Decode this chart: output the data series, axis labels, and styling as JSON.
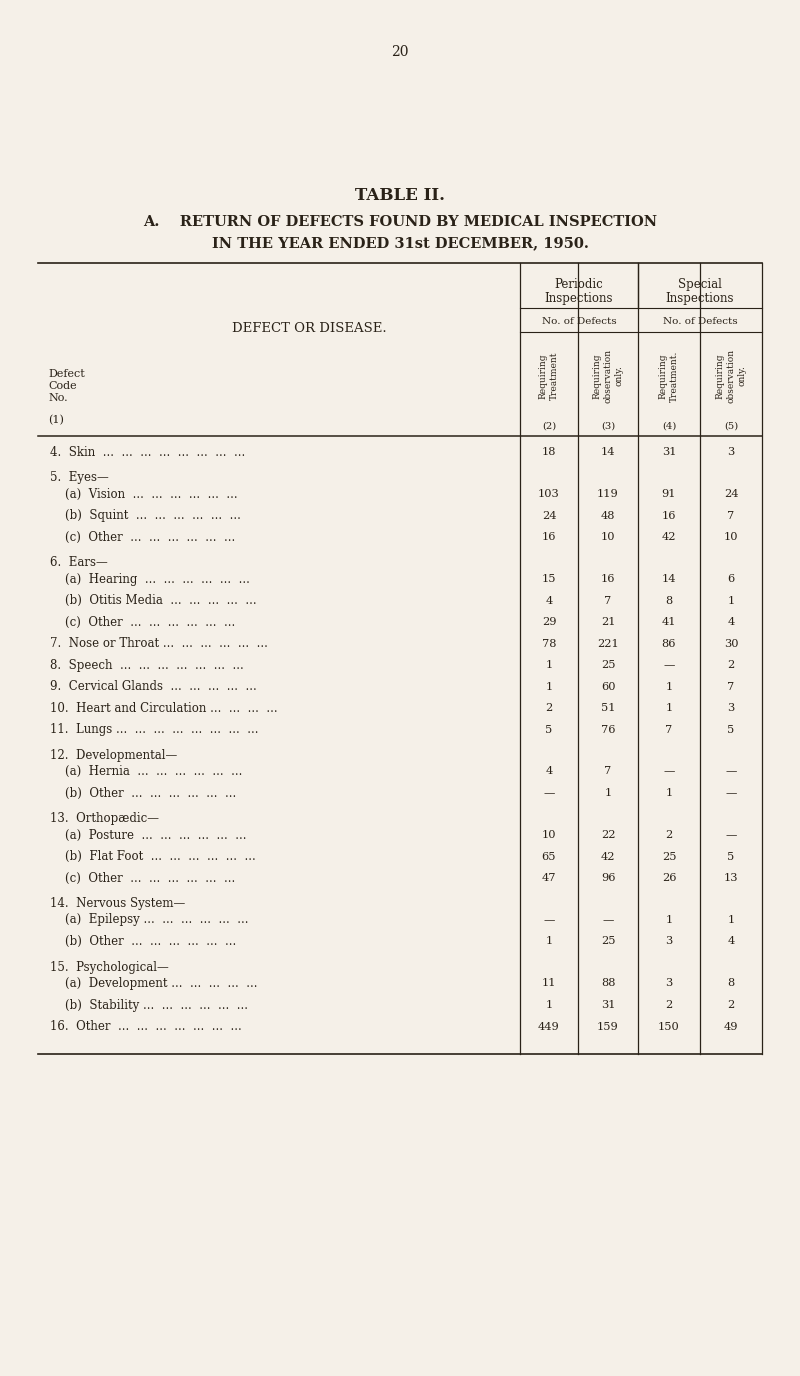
{
  "page_number": "20",
  "table_title": "TABLE II.",
  "subtitle_a": "A.    RETURN OF DEFECTS FOUND BY MEDICAL INSPECTION",
  "subtitle_b": "IN THE YEAR ENDED 31st DECEMBER, 1950.",
  "col_headers_rot": [
    "Requiring\nTreatment",
    "Requiring\nobservation\nonly.",
    "Requiring\nTreatment.",
    "Requiring\nobservation\nonly."
  ],
  "col_numbers": [
    "(2)",
    "(3)",
    "(4)",
    "(5)"
  ],
  "rows": [
    {
      "label": "4.  Skin  ...  ...  ...  ...  ...  ...  ...  ...",
      "level": 0,
      "v2": "18",
      "v3": "14",
      "v4": "31",
      "v5": "3"
    },
    {
      "label": "5.  Eyes—",
      "level": 0,
      "v2": "",
      "v3": "",
      "v4": "",
      "v5": ""
    },
    {
      "label": "    (a)  Vision  ...  ...  ...  ...  ...  ...",
      "level": 1,
      "v2": "103",
      "v3": "119",
      "v4": "91",
      "v5": "24"
    },
    {
      "label": "    (b)  Squint  ...  ...  ...  ...  ...  ...",
      "level": 1,
      "v2": "24",
      "v3": "48",
      "v4": "16",
      "v5": "7"
    },
    {
      "label": "    (c)  Other  ...  ...  ...  ...  ...  ...",
      "level": 1,
      "v2": "16",
      "v3": "10",
      "v4": "42",
      "v5": "10"
    },
    {
      "label": "6.  Ears—",
      "level": 0,
      "v2": "",
      "v3": "",
      "v4": "",
      "v5": ""
    },
    {
      "label": "    (a)  Hearing  ...  ...  ...  ...  ...  ...",
      "level": 1,
      "v2": "15",
      "v3": "16",
      "v4": "14",
      "v5": "6"
    },
    {
      "label": "    (b)  Otitis Media  ...  ...  ...  ...  ...",
      "level": 1,
      "v2": "4",
      "v3": "7",
      "v4": "8",
      "v5": "1"
    },
    {
      "label": "    (c)  Other  ...  ...  ...  ...  ...  ...",
      "level": 1,
      "v2": "29",
      "v3": "21",
      "v4": "41",
      "v5": "4"
    },
    {
      "label": "7.  Nose or Throat ...  ...  ...  ...  ...  ...",
      "level": 0,
      "v2": "78",
      "v3": "221",
      "v4": "86",
      "v5": "30"
    },
    {
      "label": "8.  Speech  ...  ...  ...  ...  ...  ...  ...",
      "level": 0,
      "v2": "1",
      "v3": "25",
      "v4": "—",
      "v5": "2"
    },
    {
      "label": "9.  Cervical Glands  ...  ...  ...  ...  ...",
      "level": 0,
      "v2": "1",
      "v3": "60",
      "v4": "1",
      "v5": "7"
    },
    {
      "label": "10.  Heart and Circulation ...  ...  ...  ...",
      "level": 0,
      "v2": "2",
      "v3": "51",
      "v4": "1",
      "v5": "3"
    },
    {
      "label": "11.  Lungs ...  ...  ...  ...  ...  ...  ...  ...",
      "level": 0,
      "v2": "5",
      "v3": "76",
      "v4": "7",
      "v5": "5"
    },
    {
      "label": "12.  Developmental—",
      "level": 0,
      "v2": "",
      "v3": "",
      "v4": "",
      "v5": ""
    },
    {
      "label": "    (a)  Hernia  ...  ...  ...  ...  ...  ...",
      "level": 1,
      "v2": "4",
      "v3": "7",
      "v4": "—",
      "v5": "—"
    },
    {
      "label": "    (b)  Other  ...  ...  ...  ...  ...  ...",
      "level": 1,
      "v2": "—",
      "v3": "1",
      "v4": "1",
      "v5": "—"
    },
    {
      "label": "13.  Orthopædic—",
      "level": 0,
      "v2": "",
      "v3": "",
      "v4": "",
      "v5": ""
    },
    {
      "label": "    (a)  Posture  ...  ...  ...  ...  ...  ...",
      "level": 1,
      "v2": "10",
      "v3": "22",
      "v4": "2",
      "v5": "—"
    },
    {
      "label": "    (b)  Flat Foot  ...  ...  ...  ...  ...  ...",
      "level": 1,
      "v2": "65",
      "v3": "42",
      "v4": "25",
      "v5": "5"
    },
    {
      "label": "    (c)  Other  ...  ...  ...  ...  ...  ...",
      "level": 1,
      "v2": "47",
      "v3": "96",
      "v4": "26",
      "v5": "13"
    },
    {
      "label": "14.  Nervous System—",
      "level": 0,
      "v2": "",
      "v3": "",
      "v4": "",
      "v5": ""
    },
    {
      "label": "    (a)  Epilepsy ...  ...  ...  ...  ...  ...",
      "level": 1,
      "v2": "—",
      "v3": "—",
      "v4": "1",
      "v5": "1"
    },
    {
      "label": "    (b)  Other  ...  ...  ...  ...  ...  ...",
      "level": 1,
      "v2": "1",
      "v3": "25",
      "v4": "3",
      "v5": "4"
    },
    {
      "label": "15.  Psychological—",
      "level": 0,
      "v2": "",
      "v3": "",
      "v4": "",
      "v5": ""
    },
    {
      "label": "    (a)  Development ...  ...  ...  ...  ...",
      "level": 1,
      "v2": "11",
      "v3": "88",
      "v4": "3",
      "v5": "8"
    },
    {
      "label": "    (b)  Stability ...  ...  ...  ...  ...  ...",
      "level": 1,
      "v2": "1",
      "v3": "31",
      "v4": "2",
      "v5": "2"
    },
    {
      "label": "16.  Other  ...  ...  ...  ...  ...  ...  ...",
      "level": 0,
      "v2": "449",
      "v3": "159",
      "v4": "150",
      "v5": "49"
    }
  ],
  "bg_color": "#f5f0e8",
  "text_color": "#2a2218",
  "line_color": "#2a2218"
}
